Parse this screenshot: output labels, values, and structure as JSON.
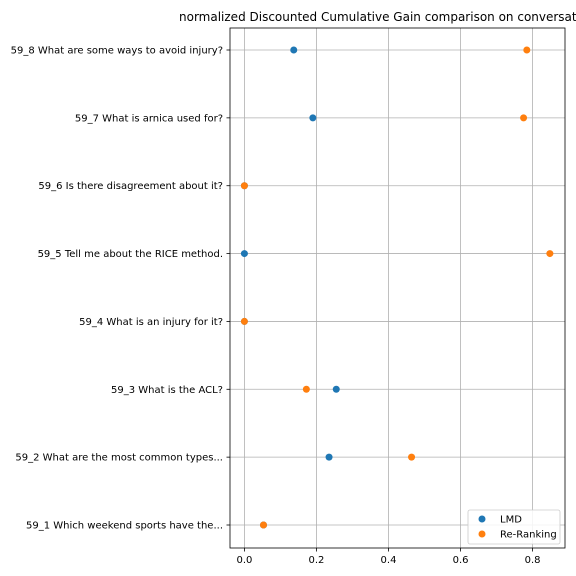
{
  "chart_data": {
    "type": "scatter",
    "title": "normalized Discounted Cumulative Gain comparison on conversat",
    "xlabel": "",
    "ylabel": "",
    "xlim": [
      -0.04,
      0.89
    ],
    "xticks": [
      0.0,
      0.2,
      0.4,
      0.6,
      0.8
    ],
    "xtick_labels": [
      "0.0",
      "0.2",
      "0.4",
      "0.6",
      "0.8"
    ],
    "categories": [
      "59_1 Which weekend sports have the...",
      "59_2 What are the most common types...",
      "59_3 What is the ACL?",
      "59_4 What is an injury for it?",
      "59_5 Tell me about the RICE method.",
      "59_6 Is there disagreement about it?",
      "59_7 What is arnica used for?",
      "59_8 What are some ways to avoid injury?"
    ],
    "grid": true,
    "legend_position": "lower-right",
    "series": [
      {
        "name": "LMD",
        "color": "#1f77b4",
        "values": [
          0.053,
          0.235,
          0.255,
          0.0,
          0.0,
          0.0,
          0.19,
          0.137
        ]
      },
      {
        "name": "Re-Ranking",
        "color": "#ff7f0e",
        "values": [
          0.053,
          0.464,
          0.172,
          0.0,
          0.848,
          0.0,
          0.775,
          0.784
        ]
      }
    ]
  }
}
